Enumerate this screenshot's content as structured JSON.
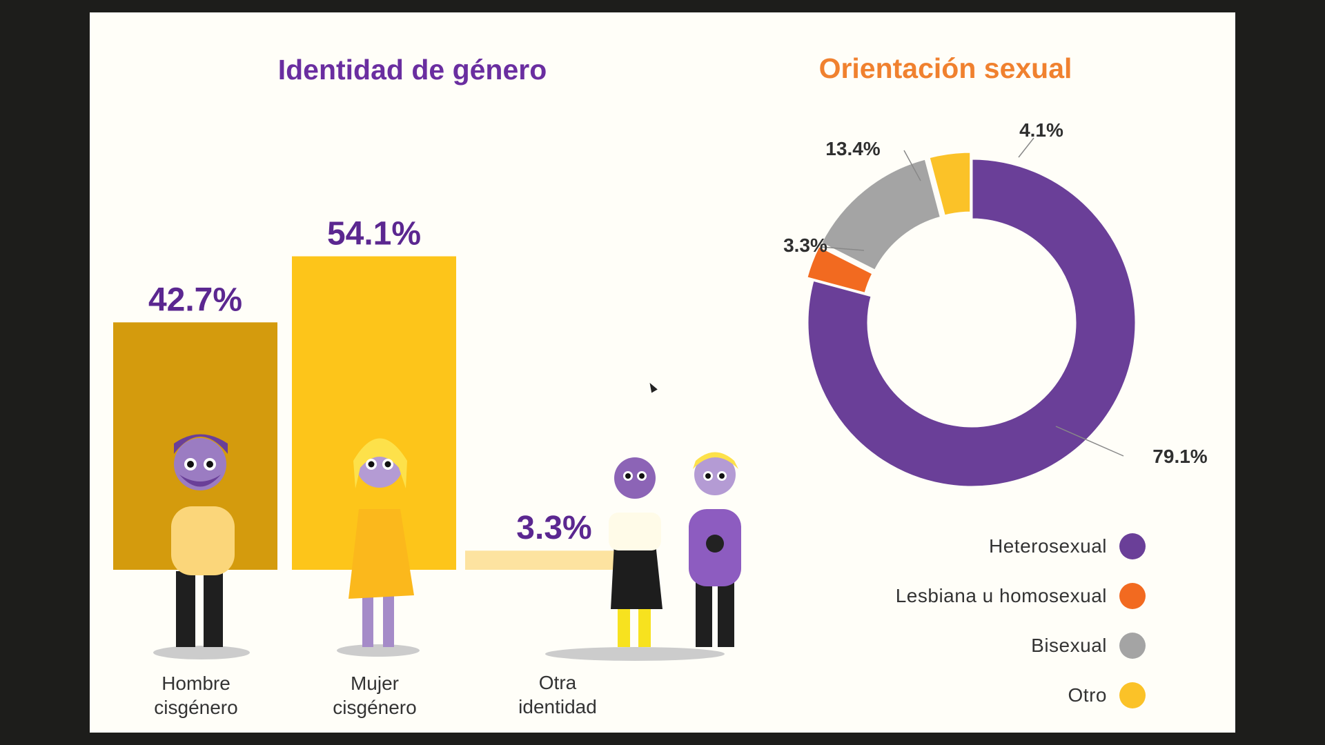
{
  "slide": {
    "left_title": "Identidad de género",
    "right_title": "Orientación sexual"
  },
  "colors": {
    "bar_dark_gold": "#d49b0d",
    "bar_gold": "#fdc51a",
    "bar_light": "#fde3a0",
    "purple": "#6a3f98",
    "orange": "#f26a20",
    "gray": "#a4a4a4",
    "yellow": "#fbc228"
  },
  "chart_data": [
    {
      "type": "bar",
      "title": "Identidad de género",
      "categories": [
        "Hombre cisgénero",
        "Mujer cisgénero",
        "Otra identidad"
      ],
      "category_lines": [
        [
          "Hombre",
          "cisgénero"
        ],
        [
          "Mujer",
          "cisgénero"
        ],
        [
          "Otra",
          "identidad"
        ]
      ],
      "values": [
        42.7,
        54.1,
        3.3
      ],
      "value_labels": [
        "42.7%",
        "54.1%",
        "3.3%"
      ],
      "unit": "%",
      "ylim": [
        0,
        60
      ]
    },
    {
      "type": "pie",
      "style": "donut",
      "title": "Orientación sexual",
      "labels": [
        "Heterosexual",
        "Lesbiana u homosexual",
        "Bisexual",
        "Otro"
      ],
      "values": [
        79.1,
        3.3,
        13.4,
        4.1
      ],
      "value_labels": [
        "79.1%",
        "3.3%",
        "13.4%",
        "4.1%"
      ],
      "unit": "%"
    }
  ]
}
